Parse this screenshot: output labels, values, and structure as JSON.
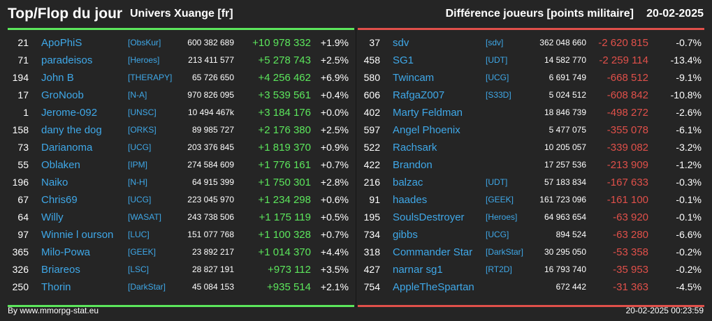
{
  "header": {
    "title": "Top/Flop du jour",
    "universe": "Univers Xuange [fr]",
    "metric": "Différence joueurs [points militaire]",
    "date": "20-02-2025"
  },
  "colors": {
    "background": "#252525",
    "top_accent": "#5ce65c",
    "flop_accent": "#e0504a",
    "player_link": "#3fa8e8"
  },
  "top": [
    {
      "rank": "21",
      "player": "ApoPhiS",
      "alliance": "[ObsKur]",
      "points": "600 382 689",
      "diff": "+10 978 332",
      "pct": "+1.9%"
    },
    {
      "rank": "71",
      "player": "paradeisos",
      "alliance": "[Heroes]",
      "points": "213 411 577",
      "diff": "+5 278 743",
      "pct": "+2.5%"
    },
    {
      "rank": "194",
      "player": "John B",
      "alliance": "[THERAPY]",
      "points": "65 726 650",
      "diff": "+4 256 462",
      "pct": "+6.9%"
    },
    {
      "rank": "17",
      "player": "GroNoob",
      "alliance": "[N-A]",
      "points": "970 826 095",
      "diff": "+3 539 561",
      "pct": "+0.4%"
    },
    {
      "rank": "1",
      "player": "Jerome-092",
      "alliance": "[UNSC]",
      "points": "10 494 467k",
      "diff": "+3 184 176",
      "pct": "+0.0%"
    },
    {
      "rank": "158",
      "player": "dany the dog",
      "alliance": "[ORKS]",
      "points": "89 985 727",
      "diff": "+2 176 380",
      "pct": "+2.5%"
    },
    {
      "rank": "73",
      "player": "Darianoma",
      "alliance": "[UCG]",
      "points": "203 376 845",
      "diff": "+1 819 370",
      "pct": "+0.9%"
    },
    {
      "rank": "55",
      "player": "Oblaken",
      "alliance": "[IPM]",
      "points": "274 584 609",
      "diff": "+1 776 161",
      "pct": "+0.7%"
    },
    {
      "rank": "196",
      "player": "Naiko",
      "alliance": "[N-H]",
      "points": "64 915 399",
      "diff": "+1 750 301",
      "pct": "+2.8%"
    },
    {
      "rank": "67",
      "player": "Chris69",
      "alliance": "[UCG]",
      "points": "223 045 970",
      "diff": "+1 234 298",
      "pct": "+0.6%"
    },
    {
      "rank": "64",
      "player": "Willy",
      "alliance": "[WASAT]",
      "points": "243 738 506",
      "diff": "+1 175 119",
      "pct": "+0.5%"
    },
    {
      "rank": "97",
      "player": "Winnie l ourson",
      "alliance": "[LUC]",
      "points": "151 077 768",
      "diff": "+1 100 328",
      "pct": "+0.7%"
    },
    {
      "rank": "365",
      "player": "Milo-Powa",
      "alliance": "[GEEK]",
      "points": "23 892 217",
      "diff": "+1 014 370",
      "pct": "+4.4%"
    },
    {
      "rank": "326",
      "player": "Briareos",
      "alliance": "[LSC]",
      "points": "28 827 191",
      "diff": "+973 112",
      "pct": "+3.5%"
    },
    {
      "rank": "250",
      "player": "Thorin",
      "alliance": "[DarkStar]",
      "points": "45 084 153",
      "diff": "+935 514",
      "pct": "+2.1%"
    }
  ],
  "flop": [
    {
      "rank": "37",
      "player": "sdv",
      "alliance": "[sdv]",
      "points": "362 048 660",
      "diff": "-2 620 815",
      "pct": "-0.7%"
    },
    {
      "rank": "458",
      "player": "SG1",
      "alliance": "[UDT]",
      "points": "14 582 770",
      "diff": "-2 259 114",
      "pct": "-13.4%"
    },
    {
      "rank": "580",
      "player": "Twincam",
      "alliance": "[UCG]",
      "points": "6 691 749",
      "diff": "-668 512",
      "pct": "-9.1%"
    },
    {
      "rank": "606",
      "player": "RafgaZ007",
      "alliance": "[S33D]",
      "points": "5 024 512",
      "diff": "-608 842",
      "pct": "-10.8%"
    },
    {
      "rank": "402",
      "player": "Marty Feldman",
      "alliance": "",
      "points": "18 846 739",
      "diff": "-498 272",
      "pct": "-2.6%"
    },
    {
      "rank": "597",
      "player": "Angel Phoenix",
      "alliance": "",
      "points": "5 477 075",
      "diff": "-355 078",
      "pct": "-6.1%"
    },
    {
      "rank": "522",
      "player": "Rachsark",
      "alliance": "",
      "points": "10 205 057",
      "diff": "-339 082",
      "pct": "-3.2%"
    },
    {
      "rank": "422",
      "player": "Brandon",
      "alliance": "",
      "points": "17 257 536",
      "diff": "-213 909",
      "pct": "-1.2%"
    },
    {
      "rank": "216",
      "player": "balzac",
      "alliance": "[UDT]",
      "points": "57 183 834",
      "diff": "-167 633",
      "pct": "-0.3%"
    },
    {
      "rank": "91",
      "player": "haades",
      "alliance": "[GEEK]",
      "points": "161 723 096",
      "diff": "-161 100",
      "pct": "-0.1%"
    },
    {
      "rank": "195",
      "player": "SoulsDestroyer",
      "alliance": "[Heroes]",
      "points": "64 963 654",
      "diff": "-63 920",
      "pct": "-0.1%"
    },
    {
      "rank": "734",
      "player": "gibbs",
      "alliance": "[UCG]",
      "points": "894 524",
      "diff": "-63 280",
      "pct": "-6.6%"
    },
    {
      "rank": "318",
      "player": "Commander Star",
      "alliance": "[DarkStar]",
      "points": "30 295 050",
      "diff": "-53 358",
      "pct": "-0.2%"
    },
    {
      "rank": "427",
      "player": "narnar sg1",
      "alliance": "[RT2D]",
      "points": "16 793 740",
      "diff": "-35 953",
      "pct": "-0.2%"
    },
    {
      "rank": "754",
      "player": "AppleTheSpartan",
      "alliance": "",
      "points": "672 442",
      "diff": "-31 363",
      "pct": "-4.5%"
    }
  ],
  "footer": {
    "source": "By www.mmorpg-stat.eu",
    "timestamp": "20-02-2025 00:23:59"
  }
}
